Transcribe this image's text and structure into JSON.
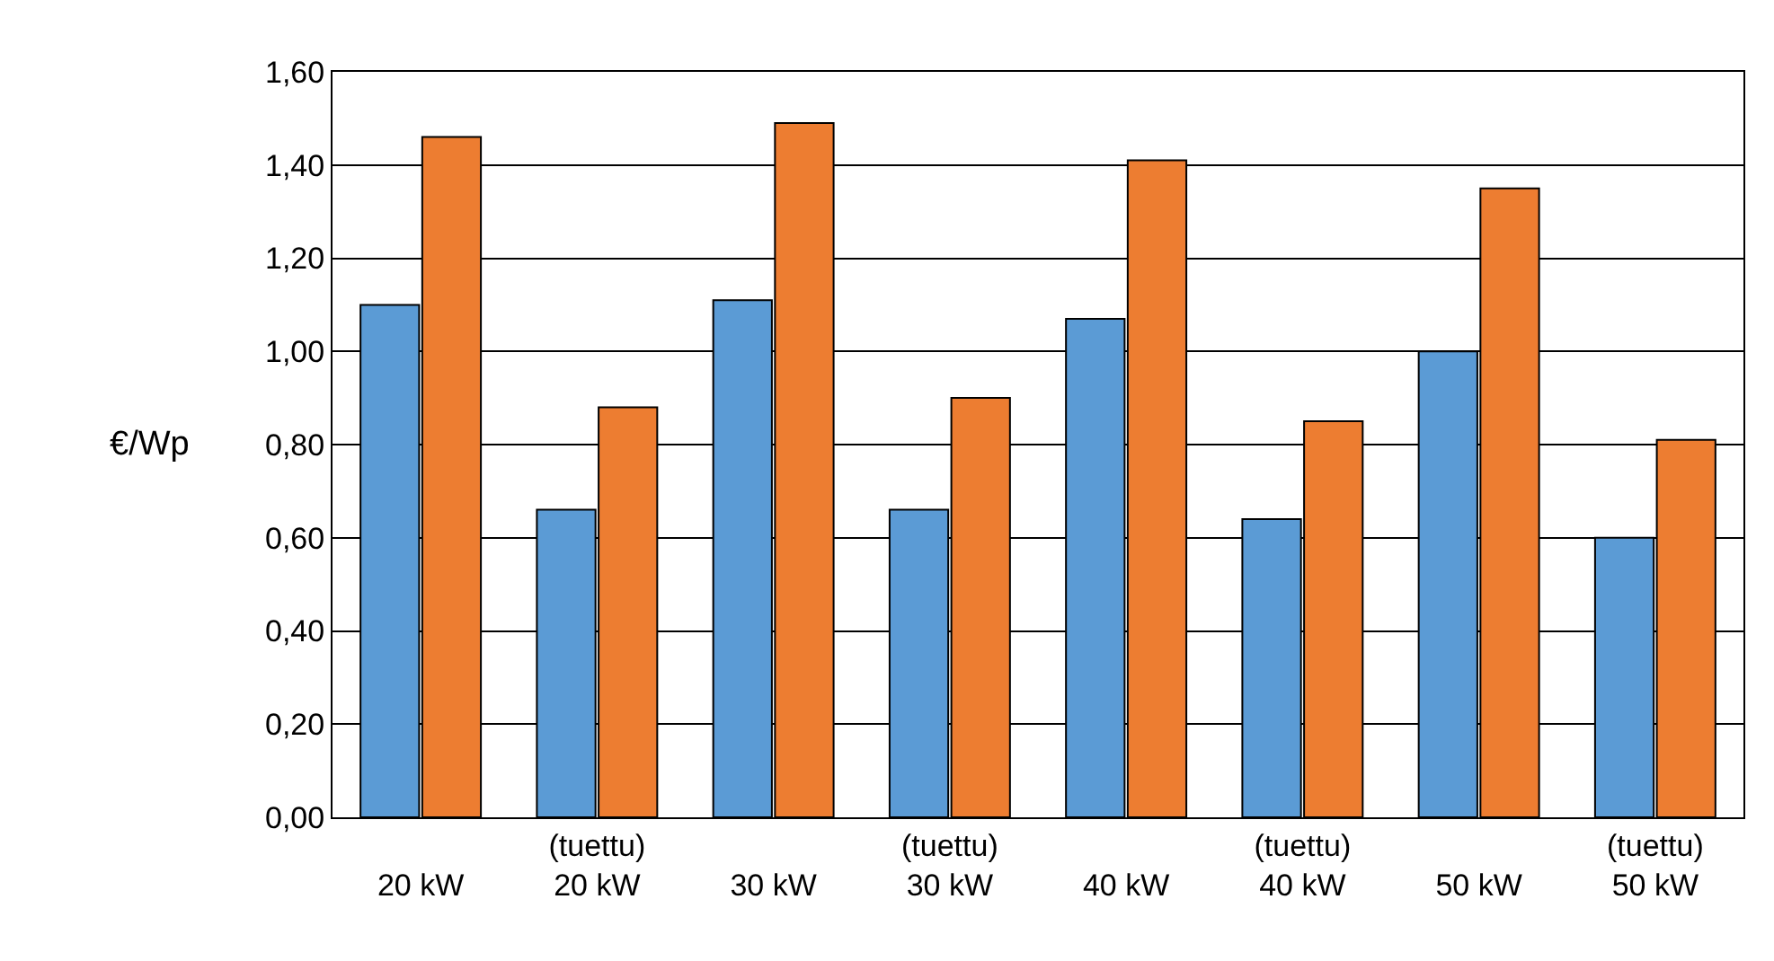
{
  "chart_data": {
    "type": "bar",
    "ylabel": "€/Wp",
    "categories": [
      "\n20 kW",
      "(tuettu)\n20 kW",
      "\n30 kW",
      "(tuettu)\n30 kW",
      "\n40 kW",
      "(tuettu)\n40 kW",
      "\n50 kW",
      "(tuettu)\n50 kW"
    ],
    "series": [
      {
        "color": "#5b9bd5",
        "values": [
          1.1,
          0.66,
          1.11,
          0.66,
          1.07,
          0.64,
          1.0,
          0.6
        ]
      },
      {
        "color": "#ed7d31",
        "values": [
          1.46,
          0.88,
          1.49,
          0.9,
          1.41,
          0.85,
          1.35,
          0.81
        ]
      }
    ],
    "ylim": [
      0,
      1.6
    ],
    "yticks": [
      {
        "value": 0,
        "label": "0,00"
      },
      {
        "value": 0.2,
        "label": "0,20"
      },
      {
        "value": 0.4,
        "label": "0,40"
      },
      {
        "value": 0.6,
        "label": "0,60"
      },
      {
        "value": 0.8,
        "label": "0,80"
      },
      {
        "value": 1.0,
        "label": "1,00"
      },
      {
        "value": 1.2,
        "label": "1,20"
      },
      {
        "value": 1.4,
        "label": "1,40"
      },
      {
        "value": 1.6,
        "label": "1,60"
      }
    ],
    "grid": "y"
  }
}
